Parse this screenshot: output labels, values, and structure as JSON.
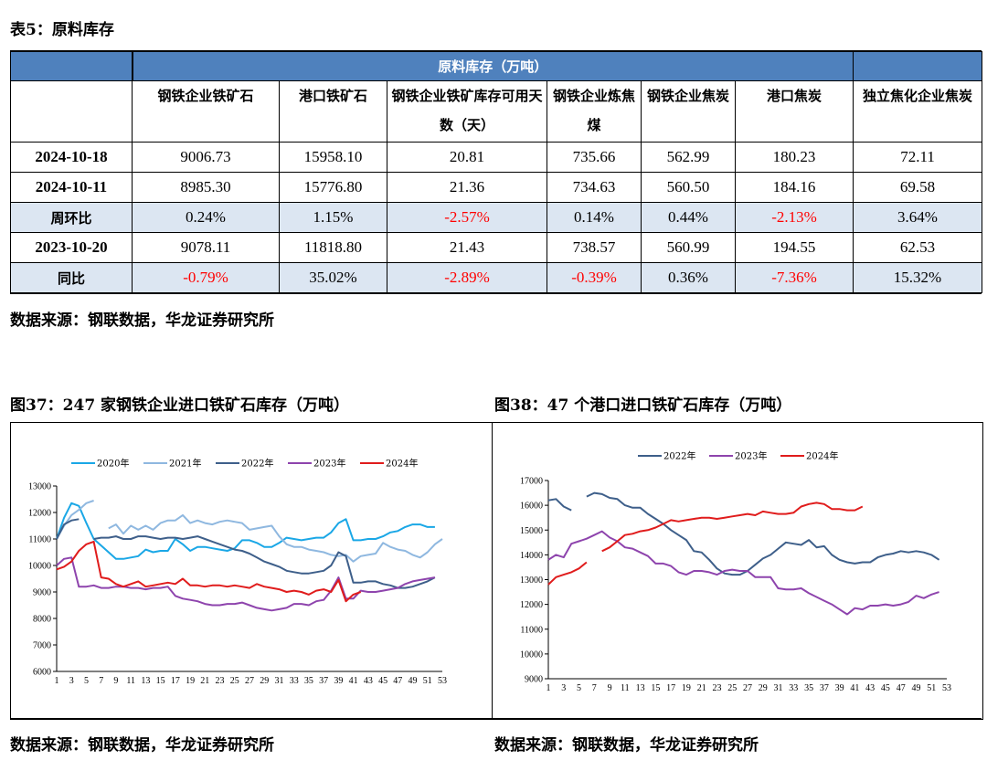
{
  "table_title": "表5：原料库存",
  "table": {
    "group_header": "原料库存（万吨）",
    "columns": [
      "钢铁企业铁矿石",
      "港口铁矿石",
      "钢铁企业铁矿库存可用天数（天）",
      "钢铁企业炼焦煤",
      "钢铁企业焦炭",
      "港口焦炭",
      "独立焦化企业焦炭"
    ],
    "rows": [
      {
        "label": "2024-10-18",
        "cells": [
          "9006.73",
          "15958.10",
          "20.81",
          "735.66",
          "562.99",
          "180.23",
          "72.11"
        ]
      },
      {
        "label": "2024-10-11",
        "cells": [
          "8985.30",
          "15776.80",
          "21.36",
          "734.63",
          "560.50",
          "184.16",
          "69.58"
        ]
      },
      {
        "label": "周环比",
        "cells": [
          "0.24%",
          "1.15%",
          "-2.57%",
          "0.14%",
          "0.44%",
          "-2.13%",
          "3.64%"
        ]
      },
      {
        "label": "2023-10-20",
        "cells": [
          "9078.11",
          "11818.80",
          "21.43",
          "738.57",
          "560.99",
          "194.55",
          "62.53"
        ]
      },
      {
        "label": "同比",
        "cells": [
          "-0.79%",
          "35.02%",
          "-2.89%",
          "-0.39%",
          "0.36%",
          "-7.36%",
          "15.32%"
        ]
      }
    ]
  },
  "table_source": "数据来源：钢联数据，华龙证券研究所",
  "fig37_title": "图37：247 家钢铁企业进口铁矿石库存（万吨）",
  "fig38_title": "图38：47 个港口进口铁矿石库存（万吨）",
  "fig37_source": "数据来源：钢联数据，华龙证券研究所",
  "fig38_source": "数据来源：钢联数据，华龙证券研究所",
  "chart_data": [
    {
      "type": "line",
      "ylim": [
        6000,
        13000
      ],
      "yticks": [
        6000,
        7000,
        8000,
        9000,
        10000,
        11000,
        12000,
        13000
      ],
      "xlim": [
        1,
        53
      ],
      "xticks": [
        1,
        3,
        5,
        7,
        9,
        11,
        13,
        15,
        17,
        19,
        21,
        23,
        25,
        27,
        29,
        31,
        33,
        35,
        37,
        39,
        41,
        43,
        45,
        47,
        49,
        51,
        53
      ],
      "legend_position": "top",
      "series": [
        {
          "name": "2020年",
          "color": "#1aa7e6",
          "x": [
            1,
            2,
            3,
            4,
            5,
            6,
            7,
            8,
            9,
            10,
            11,
            12,
            13,
            14,
            15,
            16,
            17,
            18,
            19,
            20,
            21,
            22,
            23,
            24,
            25,
            26,
            27,
            28,
            29,
            30,
            31,
            32,
            33,
            34,
            35,
            36,
            37,
            38,
            39,
            40,
            41,
            42,
            43,
            44,
            45,
            46,
            47,
            48,
            49,
            50,
            51,
            52
          ],
          "values": [
            11000,
            11800,
            12350,
            12250,
            11600,
            11000,
            10750,
            10500,
            10250,
            10250,
            10300,
            10350,
            10600,
            10500,
            10550,
            10550,
            11000,
            10800,
            10550,
            10700,
            10700,
            10650,
            10600,
            10550,
            10650,
            10950,
            10950,
            10850,
            10700,
            10700,
            10850,
            11050,
            11000,
            10950,
            11000,
            11050,
            11050,
            11250,
            11600,
            11750,
            10950,
            10950,
            11000,
            11000,
            11100,
            11250,
            11300,
            11450,
            11550,
            11550,
            11450,
            11450
          ]
        },
        {
          "name": "2021年",
          "color": "#8fb8e0",
          "x": [
            1,
            2,
            3,
            4,
            5,
            6,
            null,
            8,
            9,
            10,
            11,
            12,
            13,
            14,
            15,
            16,
            17,
            18,
            19,
            20,
            21,
            22,
            23,
            24,
            25,
            26,
            27,
            28,
            29,
            30,
            31,
            32,
            33,
            34,
            35,
            36,
            37,
            38,
            39,
            40,
            41,
            42,
            43,
            44,
            45,
            46,
            47,
            48,
            49,
            50,
            51,
            52,
            53
          ],
          "values": [
            11000,
            11500,
            11900,
            12100,
            12350,
            12450,
            null,
            11400,
            11550,
            11200,
            11500,
            11350,
            11500,
            11350,
            11600,
            11700,
            11700,
            11900,
            11600,
            11700,
            11600,
            11550,
            11650,
            11700,
            11650,
            11600,
            11350,
            11400,
            11450,
            11500,
            11100,
            10800,
            10700,
            10700,
            10600,
            10550,
            10500,
            10400,
            10350,
            10400,
            10150,
            10350,
            10400,
            10450,
            10850,
            10700,
            10600,
            10550,
            10400,
            10300,
            10500,
            10800,
            11000
          ]
        },
        {
          "name": "2022年",
          "color": "#3e5f8a",
          "x": [
            1,
            2,
            3,
            4,
            null,
            6,
            7,
            8,
            9,
            10,
            11,
            12,
            13,
            14,
            15,
            16,
            17,
            18,
            19,
            20,
            21,
            22,
            23,
            24,
            25,
            26,
            27,
            28,
            29,
            30,
            31,
            32,
            33,
            34,
            35,
            36,
            37,
            38,
            39,
            40,
            41,
            42,
            43,
            44,
            45,
            46,
            47,
            48,
            49,
            50,
            51,
            52
          ],
          "values": [
            11000,
            11550,
            11700,
            11750,
            null,
            11000,
            11050,
            11050,
            11100,
            11000,
            11000,
            11100,
            11100,
            11050,
            11000,
            11050,
            11050,
            11000,
            11050,
            11100,
            11000,
            10900,
            10800,
            10700,
            10600,
            10550,
            10450,
            10300,
            10150,
            10050,
            9950,
            9800,
            9750,
            9700,
            9700,
            9750,
            9800,
            10000,
            10500,
            10350,
            9350,
            9350,
            9400,
            9400,
            9300,
            9250,
            9150,
            9150,
            9200,
            9300,
            9400,
            9550
          ]
        },
        {
          "name": "2023年",
          "color": "#8e44ad",
          "x": [
            1,
            2,
            3,
            4,
            5,
            6,
            7,
            8,
            9,
            10,
            11,
            12,
            13,
            14,
            15,
            16,
            17,
            18,
            19,
            20,
            21,
            22,
            23,
            24,
            25,
            26,
            27,
            28,
            29,
            30,
            31,
            32,
            33,
            34,
            35,
            36,
            37,
            38,
            39,
            40,
            41,
            42,
            43,
            44,
            45,
            46,
            47,
            48,
            49,
            50,
            51,
            52
          ],
          "values": [
            10000,
            10250,
            10300,
            9200,
            9200,
            9250,
            9150,
            9150,
            9200,
            9200,
            9150,
            9150,
            9100,
            9150,
            9150,
            9200,
            8850,
            8750,
            8700,
            8650,
            8550,
            8500,
            8500,
            8550,
            8550,
            8600,
            8500,
            8400,
            8350,
            8300,
            8350,
            8400,
            8550,
            8550,
            8500,
            8650,
            8700,
            9050,
            9550,
            8750,
            8750,
            9050,
            9000,
            9000,
            9050,
            9100,
            9150,
            9300,
            9400,
            9450,
            9500,
            9550
          ]
        },
        {
          "name": "2024年",
          "color": "#e01c1c",
          "x": [
            1,
            2,
            3,
            4,
            5,
            6,
            7,
            8,
            9,
            10,
            11,
            12,
            13,
            14,
            15,
            16,
            17,
            18,
            19,
            20,
            21,
            22,
            23,
            24,
            25,
            26,
            27,
            28,
            29,
            30,
            31,
            32,
            33,
            34,
            35,
            36,
            37,
            38,
            39,
            40,
            41,
            42
          ],
          "values": [
            9850,
            9950,
            10150,
            10550,
            10800,
            10900,
            9550,
            9500,
            9300,
            9200,
            9300,
            9400,
            9200,
            9250,
            9300,
            9350,
            9300,
            9500,
            9250,
            9250,
            9200,
            9250,
            9250,
            9200,
            9250,
            9200,
            9150,
            9300,
            9200,
            9150,
            9100,
            9000,
            9050,
            9000,
            8900,
            9050,
            9100,
            9000,
            9450,
            8650,
            8900,
            9000
          ]
        }
      ]
    },
    {
      "type": "line",
      "ylim": [
        9000,
        17000
      ],
      "yticks": [
        9000,
        10000,
        11000,
        12000,
        13000,
        14000,
        15000,
        16000,
        17000
      ],
      "xlim": [
        1,
        53
      ],
      "xticks": [
        1,
        3,
        5,
        7,
        9,
        11,
        13,
        15,
        17,
        19,
        21,
        23,
        25,
        27,
        29,
        31,
        33,
        35,
        37,
        39,
        41,
        43,
        45,
        47,
        49,
        51,
        53
      ],
      "legend_position": "top",
      "series": [
        {
          "name": "2022年",
          "color": "#3e5f8a",
          "x": [
            1,
            2,
            3,
            4,
            null,
            6,
            7,
            8,
            9,
            10,
            11,
            12,
            13,
            14,
            15,
            16,
            17,
            18,
            19,
            20,
            21,
            22,
            23,
            24,
            25,
            26,
            27,
            28,
            29,
            30,
            31,
            32,
            33,
            34,
            35,
            36,
            37,
            38,
            39,
            40,
            41,
            42,
            43,
            44,
            45,
            46,
            47,
            48,
            49,
            50,
            51,
            52
          ],
          "values": [
            16200,
            16250,
            15950,
            15800,
            null,
            16350,
            16500,
            16450,
            16300,
            16250,
            16000,
            15900,
            15900,
            15650,
            15450,
            15250,
            15000,
            14800,
            14600,
            14150,
            14100,
            13800,
            13450,
            13250,
            13200,
            13200,
            13350,
            13600,
            13850,
            14000,
            14250,
            14500,
            14450,
            14400,
            14600,
            14300,
            14350,
            14000,
            13800,
            13700,
            13650,
            13700,
            13700,
            13900,
            14000,
            14050,
            14150,
            14100,
            14150,
            14100,
            14000,
            13800
          ]
        },
        {
          "name": "2023年",
          "color": "#8e44ad",
          "x": [
            1,
            2,
            3,
            4,
            5,
            6,
            7,
            8,
            9,
            10,
            11,
            12,
            13,
            14,
            15,
            16,
            17,
            18,
            19,
            20,
            21,
            22,
            23,
            24,
            25,
            26,
            27,
            28,
            29,
            30,
            31,
            32,
            33,
            34,
            35,
            36,
            37,
            38,
            39,
            40,
            41,
            42,
            43,
            44,
            45,
            46,
            47,
            48,
            49,
            50,
            51,
            52
          ],
          "values": [
            13800,
            14000,
            13900,
            14450,
            14550,
            14650,
            14800,
            14950,
            14700,
            14550,
            14300,
            14250,
            14100,
            13950,
            13650,
            13650,
            13550,
            13300,
            13200,
            13350,
            13350,
            13300,
            13200,
            13350,
            13400,
            13350,
            13350,
            13100,
            13100,
            13100,
            12650,
            12600,
            12600,
            12650,
            12450,
            12300,
            12150,
            12000,
            11800,
            11600,
            11850,
            11800,
            11950,
            11950,
            12000,
            11950,
            12000,
            12100,
            12350,
            12250,
            12400,
            12500
          ]
        },
        {
          "name": "2024年",
          "color": "#e01c1c",
          "x": [
            1,
            2,
            3,
            4,
            5,
            6,
            null,
            8,
            9,
            10,
            11,
            12,
            13,
            14,
            15,
            16,
            17,
            18,
            19,
            20,
            21,
            22,
            23,
            24,
            25,
            26,
            27,
            28,
            29,
            30,
            31,
            32,
            33,
            34,
            35,
            36,
            37,
            38,
            39,
            40,
            41,
            42
          ],
          "values": [
            12800,
            13100,
            13200,
            13300,
            13450,
            13700,
            null,
            14150,
            14300,
            14550,
            14800,
            14850,
            14950,
            15000,
            15100,
            15250,
            15400,
            15350,
            15400,
            15450,
            15500,
            15500,
            15450,
            15500,
            15550,
            15600,
            15650,
            15600,
            15750,
            15700,
            15650,
            15650,
            15700,
            15950,
            16050,
            16100,
            16050,
            15850,
            15850,
            15800,
            15800,
            15950
          ]
        }
      ]
    }
  ]
}
